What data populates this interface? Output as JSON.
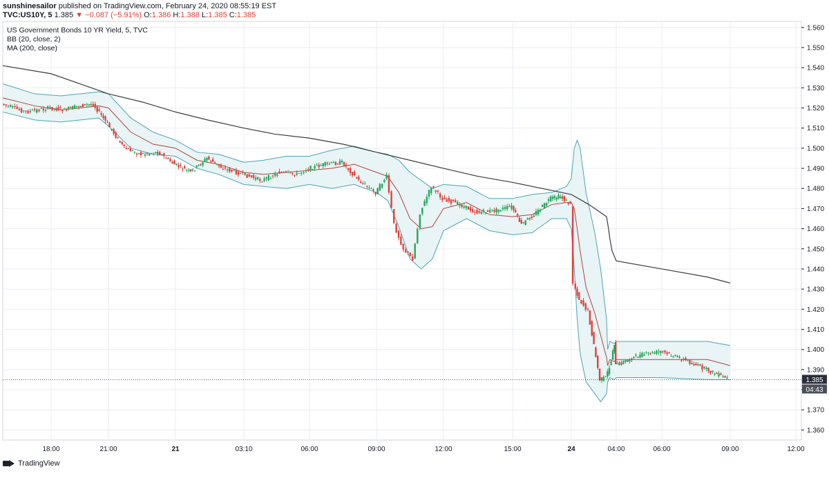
{
  "header": {
    "author": "sunshinesailor",
    "published_text": "published on TradingView.com, February 24, 2020 08:55:19 EST",
    "symbol": "TVC:US10Y, 5",
    "price": "1.385",
    "change_arrow": "▼",
    "change": "−0.087 (−5.91%)",
    "open_label": "O:",
    "open": "1.386",
    "high_label": "H:",
    "high": "1.388",
    "low_label": "L:",
    "low": "1.385",
    "close_label": "C:",
    "close": "1.385"
  },
  "legend": {
    "title": "US Government Bonds 10 YR Yield, 5, TVC",
    "bb": "BB (20, close, 2)",
    "ma": "MA (200, close)"
  },
  "price_badge": {
    "price": "1.385",
    "countdown": "04:43"
  },
  "footer": {
    "brand": "TradingView"
  },
  "colors": {
    "up": "#26a65b",
    "down": "#e0403a",
    "bb_band": "#4aa3b5",
    "bb_fill": "#e8f4f5",
    "bb_basis": "#b0413e",
    "ma": "#3a3a3a",
    "grid": "#e9ecf1"
  },
  "chart_data": {
    "type": "line",
    "title": "US Government Bonds 10 YR Yield, 5, TVC",
    "ylim": [
      1.355,
      1.563
    ],
    "y_ticks": [
      "1.360",
      "1.370",
      "1.380",
      "1.390",
      "1.400",
      "1.410",
      "1.420",
      "1.430",
      "1.440",
      "1.450",
      "1.460",
      "1.470",
      "1.480",
      "1.490",
      "1.500",
      "1.510",
      "1.520",
      "1.530",
      "1.540",
      "1.550",
      "1.560"
    ],
    "x_ticks": [
      "18:00",
      "21:00",
      "21",
      "03:10",
      "06:00",
      "09:00",
      "12:00",
      "15:00",
      "24",
      "04:00",
      "06:00",
      "09:00",
      "12:00"
    ],
    "series": [
      {
        "name": "US Government Bonds 10 YR Yield",
        "x": [
          "16:30",
          "17:15",
          "18:00",
          "18:45",
          "19:30",
          "20:15",
          "21:00",
          "21:45",
          "22:30",
          "23:15",
          "00:00",
          "00:45",
          "01:30",
          "02:15",
          "03:10",
          "04:00",
          "04:45",
          "05:30",
          "06:00",
          "06:45",
          "07:30",
          "08:15",
          "09:00",
          "09:30",
          "09:50",
          "10:15",
          "10:40",
          "11:00",
          "11:30",
          "12:00",
          "12:45",
          "13:30",
          "14:15",
          "15:00",
          "15:30",
          "16:15",
          "17:00",
          "17:30",
          "18:00",
          "18:15",
          "18:45",
          "19:30",
          "20:00",
          "20:30",
          "21:00",
          "02:00",
          "02:45",
          "03:30",
          "04:00",
          "05:00",
          "06:00",
          "07:00",
          "08:00",
          "09:00"
        ],
        "values": [
          1.522,
          1.518,
          1.52,
          1.519,
          1.521,
          1.522,
          1.512,
          1.5,
          1.497,
          1.498,
          1.492,
          1.488,
          1.495,
          1.49,
          1.487,
          1.484,
          1.488,
          1.487,
          1.49,
          1.492,
          1.493,
          1.484,
          1.478,
          1.486,
          1.462,
          1.45,
          1.445,
          1.468,
          1.481,
          1.475,
          1.472,
          1.468,
          1.469,
          1.471,
          1.462,
          1.468,
          1.475,
          1.476,
          1.472,
          1.433,
          1.425,
          1.419,
          1.402,
          1.385,
          1.386,
          1.394,
          1.4,
          1.403,
          1.392,
          1.397,
          1.399,
          1.395,
          1.39,
          1.385
        ]
      },
      {
        "name": "BB Upper",
        "x": [
          "16:30",
          "17:30",
          "18:30",
          "19:30",
          "20:30",
          "21:00",
          "22:00",
          "23:00",
          "00:00",
          "01:00",
          "02:00",
          "03:10",
          "04:00",
          "05:00",
          "06:00",
          "07:00",
          "08:00",
          "09:00",
          "09:30",
          "10:00",
          "10:30",
          "11:00",
          "11:30",
          "12:00",
          "13:00",
          "14:00",
          "15:00",
          "16:00",
          "17:00",
          "17:45",
          "18:00",
          "18:15",
          "18:30",
          "18:45",
          "19:15",
          "20:00",
          "20:30",
          "21:00",
          "22:00",
          "00:00",
          "03:00",
          "04:00",
          "06:00",
          "08:00",
          "09:00"
        ],
        "values": [
          1.532,
          1.527,
          1.526,
          1.527,
          1.528,
          1.527,
          1.515,
          1.508,
          1.504,
          1.498,
          1.497,
          1.493,
          1.494,
          1.496,
          1.496,
          1.499,
          1.501,
          1.498,
          1.497,
          1.494,
          1.488,
          1.484,
          1.48,
          1.482,
          1.481,
          1.475,
          1.475,
          1.477,
          1.478,
          1.481,
          1.485,
          1.5,
          1.504,
          1.5,
          1.478,
          1.458,
          1.44,
          1.415,
          1.4,
          1.404,
          1.403,
          1.404,
          1.404,
          1.404,
          1.402
        ]
      },
      {
        "name": "BB Lower",
        "x": [
          "16:30",
          "17:30",
          "18:30",
          "19:30",
          "20:30",
          "21:00",
          "22:00",
          "23:00",
          "00:00",
          "01:00",
          "02:00",
          "03:10",
          "04:00",
          "05:00",
          "06:00",
          "07:00",
          "08:00",
          "09:00",
          "09:30",
          "10:00",
          "10:30",
          "11:00",
          "11:30",
          "12:00",
          "13:00",
          "14:00",
          "15:00",
          "16:00",
          "17:00",
          "17:45",
          "18:00",
          "18:15",
          "18:30",
          "18:45",
          "19:15",
          "20:00",
          "20:30",
          "21:00",
          "22:00",
          "00:00",
          "03:00",
          "04:00",
          "06:00",
          "08:00",
          "09:00"
        ],
        "values": [
          1.518,
          1.514,
          1.513,
          1.514,
          1.515,
          1.511,
          1.5,
          1.497,
          1.496,
          1.49,
          1.487,
          1.482,
          1.481,
          1.48,
          1.482,
          1.48,
          1.482,
          1.478,
          1.474,
          1.461,
          1.445,
          1.44,
          1.445,
          1.459,
          1.465,
          1.459,
          1.457,
          1.458,
          1.465,
          1.465,
          1.46,
          1.44,
          1.415,
          1.398,
          1.384,
          1.378,
          1.374,
          1.378,
          1.384,
          1.386,
          1.385,
          1.386,
          1.386,
          1.385,
          1.385
        ]
      },
      {
        "name": "BB Basis",
        "x": [
          "16:30",
          "17:30",
          "18:30",
          "19:30",
          "20:30",
          "21:00",
          "22:00",
          "23:00",
          "00:00",
          "01:00",
          "02:00",
          "03:10",
          "04:00",
          "05:00",
          "06:00",
          "07:00",
          "08:00",
          "09:00",
          "09:30",
          "10:00",
          "10:30",
          "11:00",
          "11:30",
          "12:00",
          "13:00",
          "14:00",
          "15:00",
          "16:00",
          "17:00",
          "17:45",
          "18:00",
          "18:15",
          "18:30",
          "18:45",
          "19:15",
          "20:00",
          "20:30",
          "21:00",
          "22:00",
          "00:00",
          "03:00",
          "04:00",
          "06:00",
          "08:00",
          "09:00"
        ],
        "values": [
          1.525,
          1.521,
          1.519,
          1.52,
          1.521,
          1.52,
          1.508,
          1.502,
          1.5,
          1.494,
          1.492,
          1.488,
          1.487,
          1.488,
          1.489,
          1.49,
          1.492,
          1.488,
          1.486,
          1.478,
          1.465,
          1.46,
          1.461,
          1.47,
          1.473,
          1.467,
          1.466,
          1.467,
          1.472,
          1.473,
          1.473,
          1.47,
          1.46,
          1.449,
          1.431,
          1.418,
          1.407,
          1.396,
          1.392,
          1.395,
          1.394,
          1.395,
          1.395,
          1.395,
          1.392
        ]
      },
      {
        "name": "MA (200, close)",
        "x": [
          "16:30",
          "18:00",
          "19:30",
          "21:00",
          "22:30",
          "00:00",
          "01:30",
          "03:10",
          "04:30",
          "06:00",
          "07:30",
          "09:00",
          "10:30",
          "12:00",
          "13:30",
          "15:00",
          "16:30",
          "18:00",
          "19:30",
          "21:00",
          "22:30",
          "00:00",
          "02:00",
          "04:00",
          "06:00",
          "08:00",
          "09:00"
        ],
        "values": [
          1.541,
          1.537,
          1.532,
          1.527,
          1.523,
          1.518,
          1.514,
          1.51,
          1.507,
          1.505,
          1.502,
          1.498,
          1.494,
          1.49,
          1.486,
          1.483,
          1.48,
          1.477,
          1.472,
          1.466,
          1.461,
          1.455,
          1.449,
          1.444,
          1.44,
          1.436,
          1.433
        ]
      }
    ]
  }
}
